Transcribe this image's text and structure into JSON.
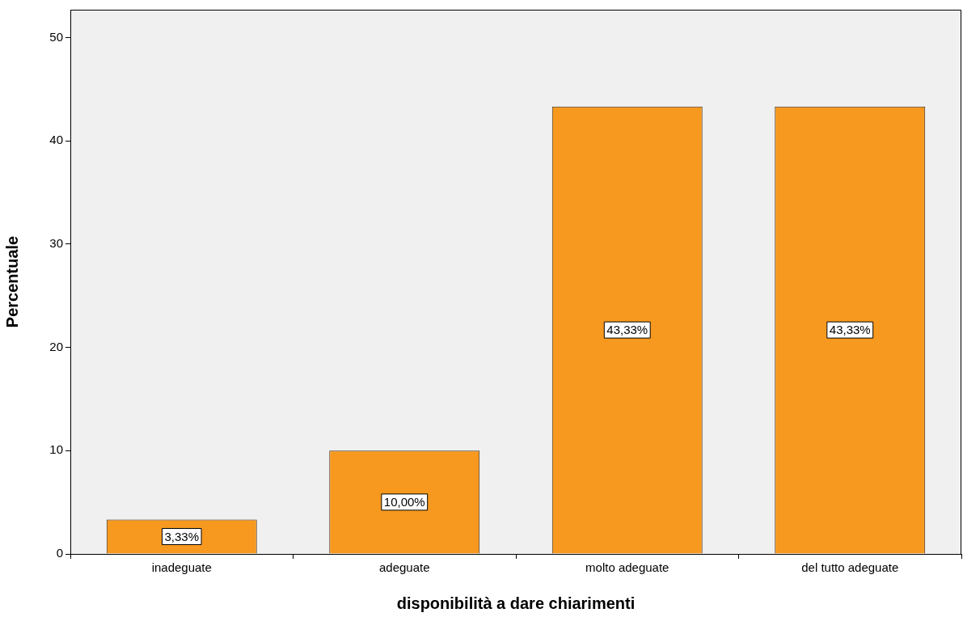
{
  "chart_data": {
    "type": "bar",
    "xlabel": "disponibilità a dare chiarimenti",
    "ylabel": "Percentuale",
    "categories": [
      "inadeguate",
      "adeguate",
      "molto adeguate",
      "del tutto adeguate"
    ],
    "values": [
      3.33,
      10,
      43.33,
      43.33
    ],
    "value_labels": [
      "3,33%",
      "10,00%",
      "43,33%",
      "43,33%"
    ],
    "color": "#f7991f",
    "ylim": [
      0,
      52.7
    ],
    "yticks": [
      0,
      10,
      20,
      30,
      40,
      50
    ]
  }
}
